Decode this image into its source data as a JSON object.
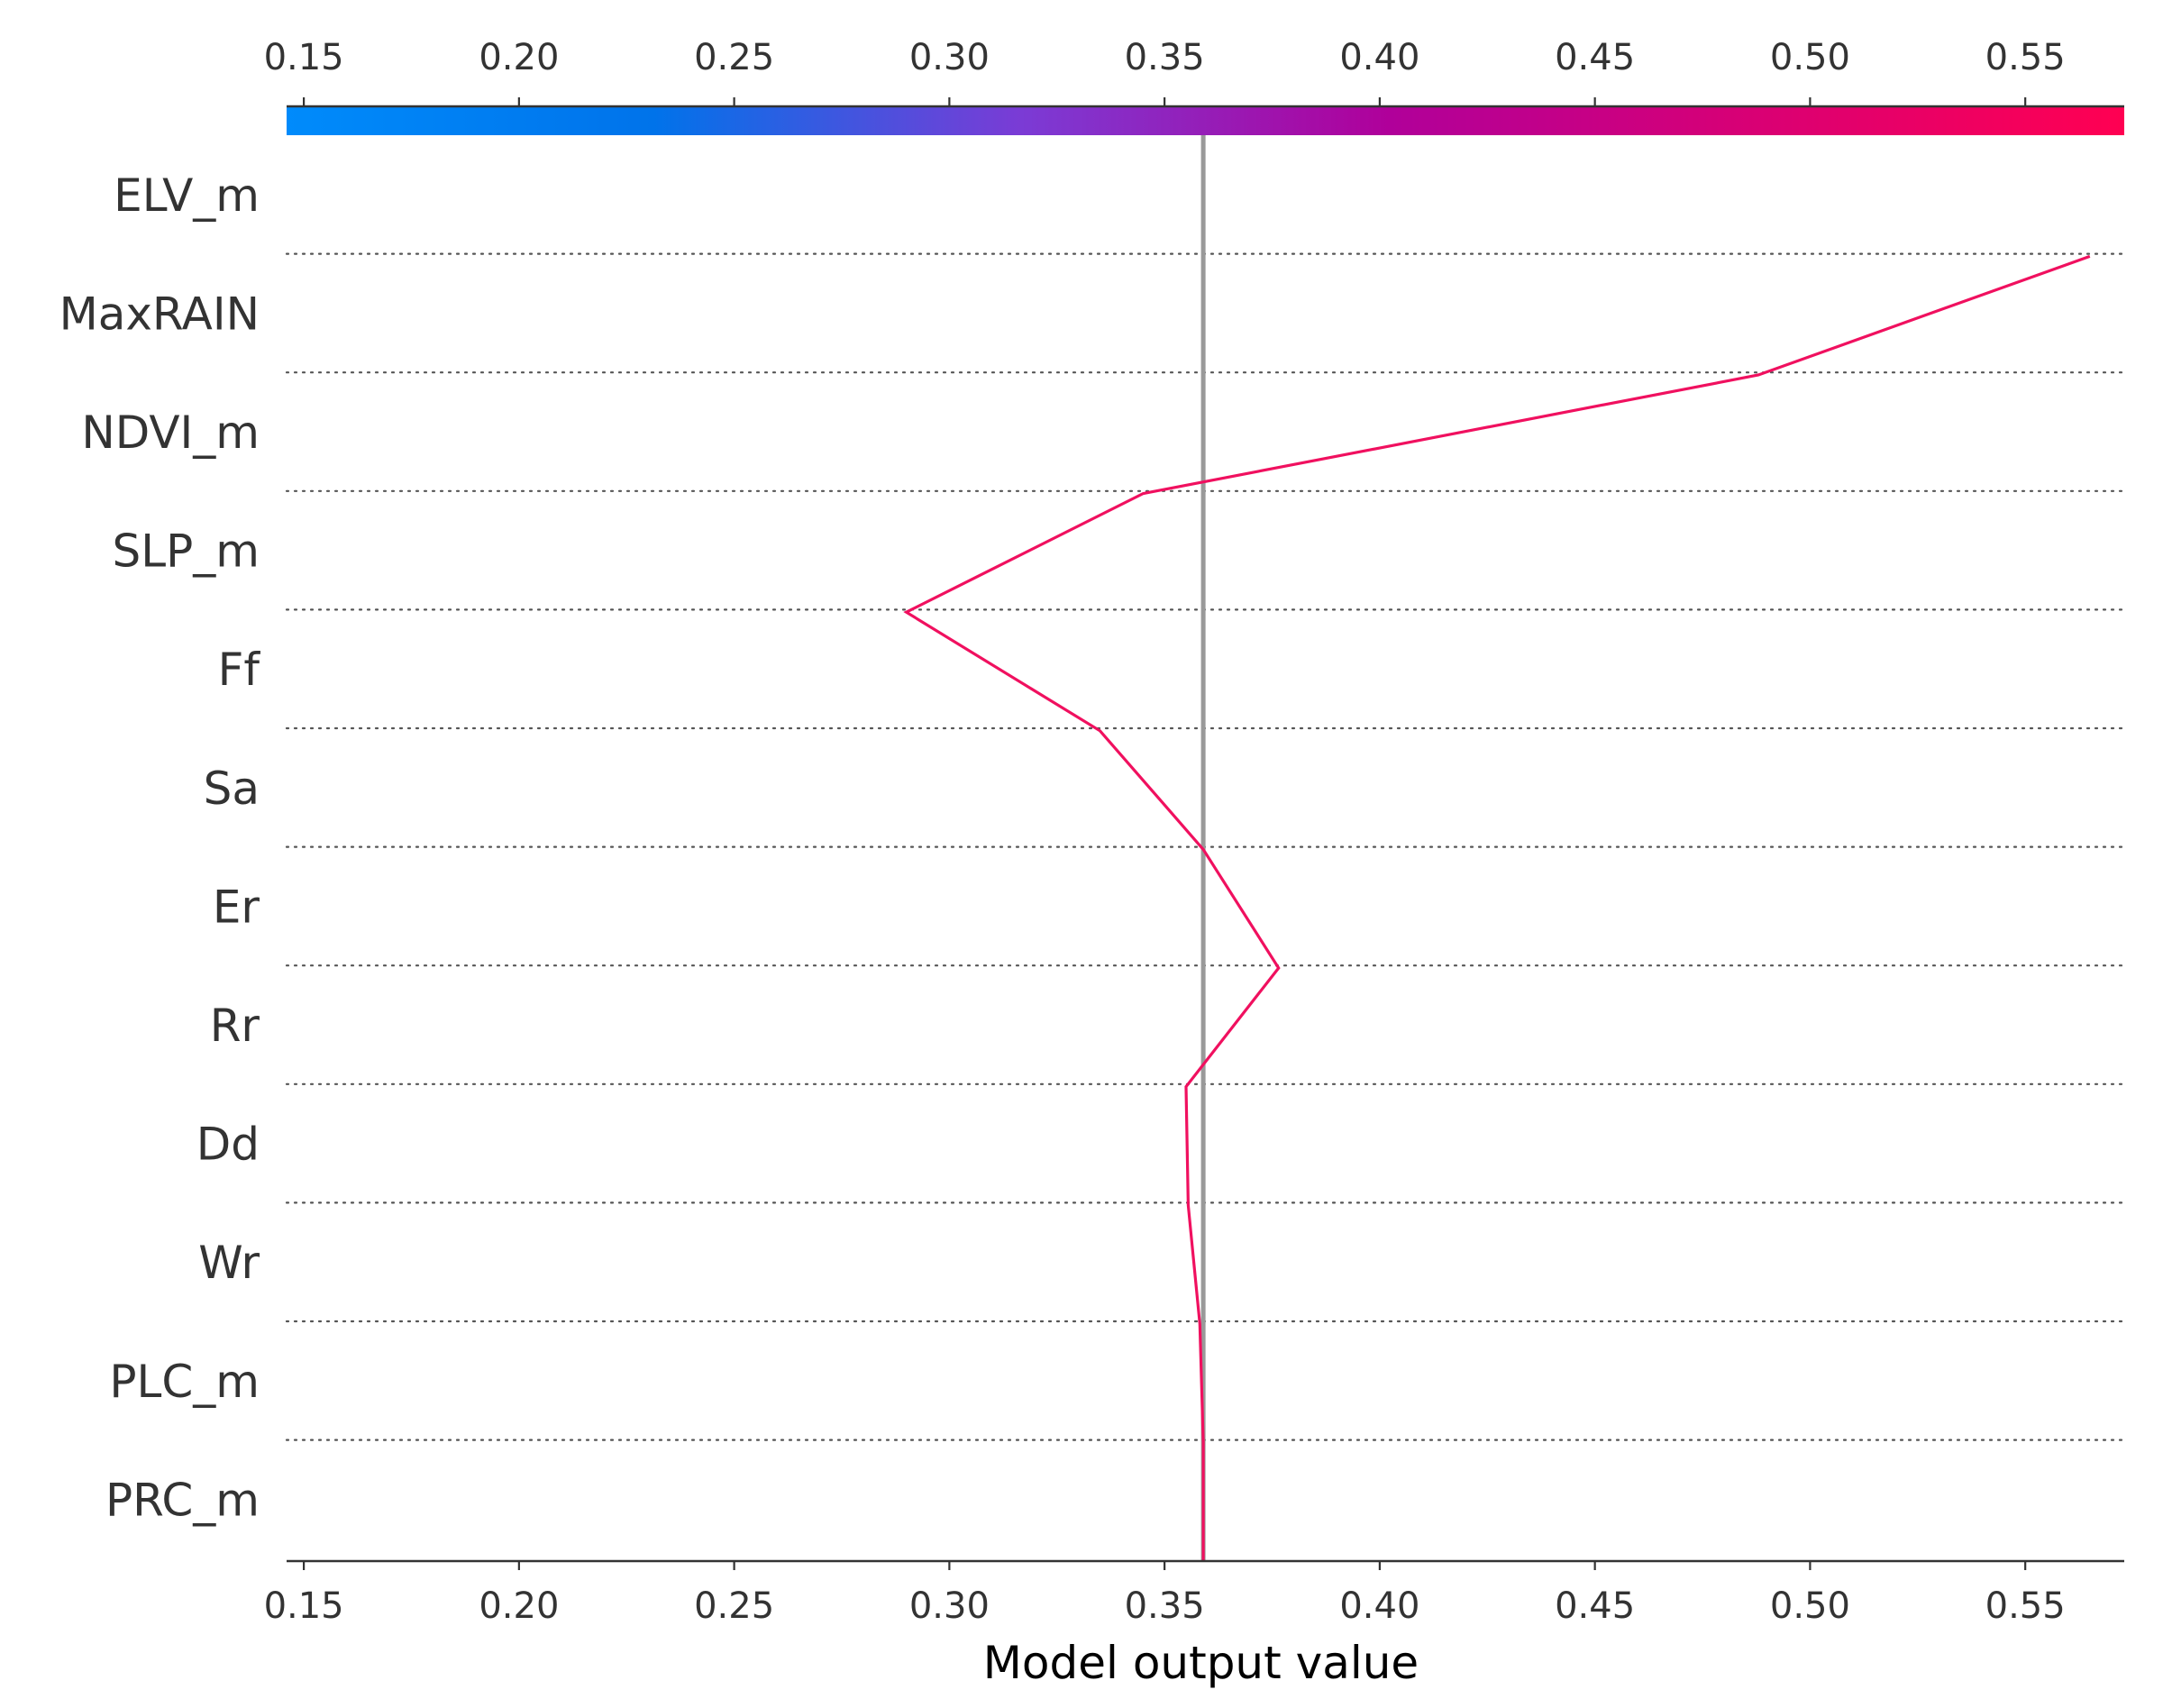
{
  "chart_data": {
    "type": "line",
    "title": "",
    "xlabel": "Model output value",
    "ylabel": "",
    "xlim": [
      0.146,
      0.573
    ],
    "xticks": [
      0.15,
      0.2,
      0.25,
      0.3,
      0.35,
      0.4,
      0.45,
      0.5,
      0.55
    ],
    "xtick_labels": [
      "0.15",
      "0.20",
      "0.25",
      "0.30",
      "0.35",
      "0.40",
      "0.45",
      "0.50",
      "0.55"
    ],
    "base_value": 0.359,
    "features": [
      "ELV_m",
      "MaxRAIN",
      "NDVI_m",
      "SLP_m",
      "Ff",
      "Sa",
      "Er",
      "Rr",
      "Dd",
      "Wr",
      "PLC_m",
      "PRC_m"
    ],
    "series": [
      {
        "values": [
          0.359,
          0.359,
          0.3582,
          0.3555,
          0.355,
          0.3765,
          0.359,
          0.335,
          0.29,
          0.345,
          0.488,
          0.565
        ]
      }
    ],
    "colorbar": {
      "stops": [
        "#008bfb",
        "#0073ea",
        "#7b3bd5",
        "#b0009a",
        "#d90074",
        "#ff0052"
      ]
    },
    "colors": {
      "line": "#f0105f",
      "base_line": "#999999",
      "grid": "#555555"
    },
    "grid": "dotted-horizontal",
    "legend": "none"
  }
}
